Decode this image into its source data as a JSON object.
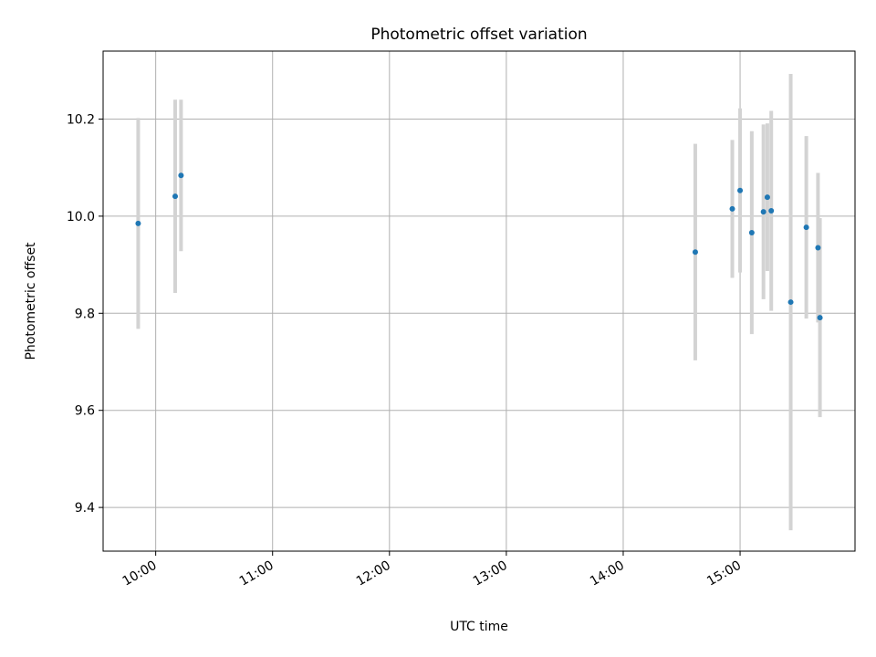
{
  "chart_data": {
    "type": "scatter",
    "title": "Photometric offset variation",
    "xlabel": "UTC time",
    "ylabel": "Photometric offset",
    "x_ticks": [
      "10:00",
      "11:00",
      "12:00",
      "13:00",
      "14:00",
      "15:00"
    ],
    "y_ticks": [
      "9.4",
      "9.6",
      "9.8",
      "10.0",
      "10.2"
    ],
    "xlim": [
      "09:33",
      "15:59"
    ],
    "ylim": [
      9.31,
      10.34
    ],
    "grid": true,
    "series": [
      {
        "marker_color": "#1f77b4",
        "errorbar_color": "#d3d3d3",
        "points": [
          {
            "x": "09:51",
            "y": 9.985,
            "yerr": 0.217
          },
          {
            "x": "10:10",
            "y": 10.041,
            "yerr": 0.199
          },
          {
            "x": "10:13",
            "y": 10.084,
            "yerr": 0.156
          },
          {
            "x": "14:37",
            "y": 9.926,
            "yerr": 0.223
          },
          {
            "x": "14:56",
            "y": 10.015,
            "yerr": 0.142
          },
          {
            "x": "15:00",
            "y": 10.053,
            "yerr": 0.169
          },
          {
            "x": "15:06",
            "y": 9.966,
            "yerr": 0.209
          },
          {
            "x": "15:12",
            "y": 10.009,
            "yerr": 0.18
          },
          {
            "x": "15:14",
            "y": 10.039,
            "yerr": 0.152
          },
          {
            "x": "15:16",
            "y": 10.011,
            "yerr": 0.206
          },
          {
            "x": "15:26",
            "y": 9.823,
            "yerr": 0.47
          },
          {
            "x": "15:34",
            "y": 9.977,
            "yerr": 0.188
          },
          {
            "x": "15:40",
            "y": 9.935,
            "yerr": 0.154
          },
          {
            "x": "15:41",
            "y": 9.791,
            "yerr": 0.205
          }
        ]
      }
    ]
  }
}
